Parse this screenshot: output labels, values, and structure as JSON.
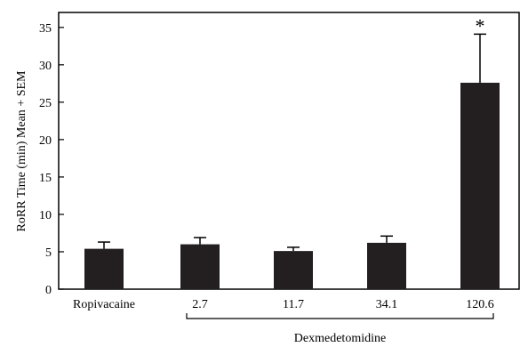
{
  "chart_data": {
    "type": "bar",
    "categories": [
      "Ropivacaine",
      "2.7",
      "11.7",
      "34.1",
      "120.6"
    ],
    "values": [
      5.4,
      6.0,
      5.1,
      6.2,
      27.6
    ],
    "errors": [
      0.9,
      0.9,
      0.5,
      0.9,
      6.5
    ],
    "significance": [
      "",
      "",
      "",
      "",
      "*"
    ],
    "ylabel": "RoRR Time (min) Mean + SEM",
    "ylim": [
      0,
      37
    ],
    "yticks": [
      0,
      5,
      10,
      15,
      20,
      25,
      30,
      35
    ],
    "group_label": "Dexmedetomidine",
    "group_span": [
      1,
      4
    ],
    "bar_color": "#231f20",
    "grid": false
  }
}
